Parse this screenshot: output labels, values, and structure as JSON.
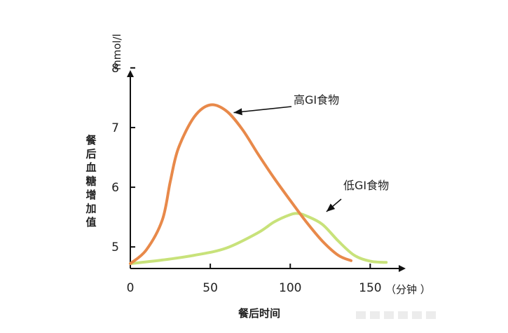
{
  "chart_data": {
    "type": "line",
    "x": {
      "label": "餐后时间",
      "unit": "（分钟 ）",
      "range": [
        0,
        170
      ],
      "ticks": [
        0,
        50,
        100,
        150
      ]
    },
    "y": {
      "label": "餐后血糖增加值",
      "unit": "mmol/l",
      "range": [
        4.65,
        8.55
      ],
      "ticks": [
        5,
        6,
        7,
        8
      ]
    },
    "grid": false,
    "series": [
      {
        "name": "高GI食物",
        "color": "#e8894a",
        "points": [
          [
            0,
            4.72
          ],
          [
            10,
            4.95
          ],
          [
            20,
            5.45
          ],
          [
            25,
            6.1
          ],
          [
            30,
            6.65
          ],
          [
            40,
            7.18
          ],
          [
            50,
            7.38
          ],
          [
            60,
            7.28
          ],
          [
            70,
            6.97
          ],
          [
            80,
            6.55
          ],
          [
            90,
            6.15
          ],
          [
            100,
            5.78
          ],
          [
            110,
            5.42
          ],
          [
            120,
            5.1
          ],
          [
            130,
            4.86
          ],
          [
            138,
            4.77
          ]
        ]
      },
      {
        "name": "低GI食物",
        "color": "#c8e27a",
        "points": [
          [
            0,
            4.72
          ],
          [
            20,
            4.78
          ],
          [
            40,
            4.86
          ],
          [
            60,
            4.98
          ],
          [
            80,
            5.24
          ],
          [
            90,
            5.42
          ],
          [
            100,
            5.54
          ],
          [
            105,
            5.56
          ],
          [
            110,
            5.52
          ],
          [
            120,
            5.38
          ],
          [
            130,
            5.1
          ],
          [
            140,
            4.86
          ],
          [
            150,
            4.76
          ],
          [
            160,
            4.74
          ]
        ]
      }
    ],
    "annotations": [
      {
        "text": "高GI食物",
        "target": [
          62,
          7.18
        ],
        "series": 0
      },
      {
        "text": "低GI食物",
        "target": [
          120,
          5.52
        ],
        "series": 1
      }
    ]
  }
}
